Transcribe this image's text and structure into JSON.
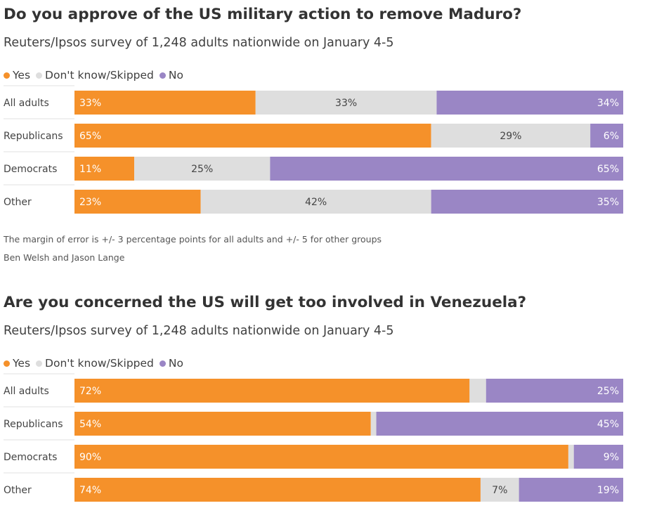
{
  "colors": {
    "yes": "#f5912a",
    "dontknow": "#dedede",
    "no": "#9a86c5",
    "label_light": "#ffffff",
    "label_dark": "#444444",
    "divider": "#e2e2e2"
  },
  "charts": [
    {
      "title": "Do you approve of the US military action to remove Maduro?",
      "subtitle": "Reuters/Ipsos survey of 1,248 adults nationwide on January 4-5",
      "legend": [
        {
          "key": "yes",
          "label": "Yes"
        },
        {
          "key": "dontknow",
          "label": "Don't know/Skipped"
        },
        {
          "key": "no",
          "label": "No"
        }
      ],
      "note": "The margin of error is +/- 3 percentage points for all adults and +/- 5 for other groups",
      "credit": "Ben Welsh and Jason Lange"
    },
    {
      "title": "Are you concerned the US will get too involved in Venezuela?",
      "subtitle": "Reuters/Ipsos survey of 1,248 adults nationwide on January 4-5",
      "legend": [
        {
          "key": "yes",
          "label": "Yes"
        },
        {
          "key": "dontknow",
          "label": "Don't know/Skipped"
        },
        {
          "key": "no",
          "label": "No"
        }
      ]
    }
  ],
  "chart_data": [
    {
      "type": "bar",
      "stacked": true,
      "orientation": "horizontal",
      "title": "Do you approve of the US military action to remove Maduro?",
      "subtitle": "Reuters/Ipsos survey of 1,248 adults nationwide on January 4-5",
      "categories": [
        "All adults",
        "Republicans",
        "Democrats",
        "Other"
      ],
      "series": [
        {
          "name": "Yes",
          "values": [
            33,
            65,
            11,
            23
          ],
          "labels": [
            "33%",
            "65%",
            "11%",
            "23%"
          ]
        },
        {
          "name": "Don't know/Skipped",
          "values": [
            33,
            29,
            25,
            42
          ],
          "labels": [
            "33%",
            "29%",
            "25%",
            "42%"
          ]
        },
        {
          "name": "No",
          "values": [
            34,
            6,
            65,
            35
          ],
          "labels": [
            "34%",
            "6%",
            "65%",
            "35%"
          ]
        }
      ],
      "xlim": [
        0,
        100
      ],
      "legend_position": "top-left",
      "grid": false
    },
    {
      "type": "bar",
      "stacked": true,
      "orientation": "horizontal",
      "title": "Are you concerned the US will get too involved in Venezuela?",
      "subtitle": "Reuters/Ipsos survey of 1,248 adults nationwide on January 4-5",
      "categories": [
        "All adults",
        "Republicans",
        "Democrats",
        "Other"
      ],
      "series": [
        {
          "name": "Yes",
          "values": [
            72,
            54,
            90,
            74
          ],
          "labels": [
            "72%",
            "54%",
            "90%",
            "74%"
          ]
        },
        {
          "name": "Don't know/Skipped",
          "values": [
            3,
            1,
            1,
            7
          ],
          "labels": [
            "",
            "",
            "",
            "7%"
          ]
        },
        {
          "name": "No",
          "values": [
            25,
            45,
            9,
            19
          ],
          "labels": [
            "25%",
            "45%",
            "9%",
            "19%"
          ]
        }
      ],
      "xlim": [
        0,
        100
      ],
      "legend_position": "top-left",
      "grid": false
    }
  ]
}
